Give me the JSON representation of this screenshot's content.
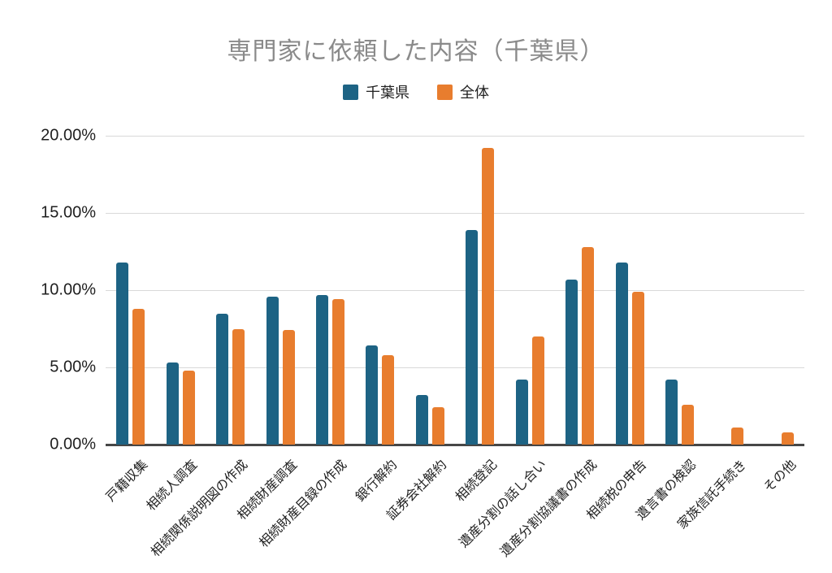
{
  "title": "専門家に依頼した内容（千葉県）",
  "legend": {
    "items": [
      {
        "label": "千葉県",
        "color": "#1d6384"
      },
      {
        "label": "全体",
        "color": "#e87d2e"
      }
    ]
  },
  "colors": {
    "series_chiba": "#1d6384",
    "series_overall": "#e87d2e",
    "title_text": "#8a8a8a",
    "tick_text": "#1f1f1f",
    "gridline": "#d9d9d9",
    "axis_line": "#474747",
    "background": "#ffffff"
  },
  "chart_data": {
    "type": "bar",
    "title": "専門家に依頼した内容（千葉県）",
    "categories": [
      "戸籍収集",
      "相続人調査",
      "相続関係説明図の作成",
      "相続財産調査",
      "相続財産目録の作成",
      "銀行解約",
      "証券会社解約",
      "相続登記",
      "遺産分割の話し合い",
      "遺産分割協議書の作成",
      "相続税の申告",
      "遺言書の検認",
      "家族信託手続き",
      "その他"
    ],
    "series": [
      {
        "name": "千葉県",
        "color": "#1d6384",
        "values": [
          11.8,
          5.3,
          8.5,
          9.6,
          9.7,
          6.4,
          3.2,
          13.9,
          4.2,
          10.7,
          11.8,
          4.2,
          0,
          0
        ]
      },
      {
        "name": "全体",
        "color": "#e87d2e",
        "values": [
          8.8,
          4.8,
          7.5,
          7.4,
          9.4,
          5.8,
          2.4,
          19.2,
          7.0,
          12.8,
          9.9,
          2.6,
          1.1,
          0.8
        ]
      }
    ],
    "xlabel": "",
    "ylabel": "",
    "ylim": [
      0,
      20
    ],
    "yticks": [
      {
        "value": 0,
        "label": "0.00%"
      },
      {
        "value": 5,
        "label": "5.00%"
      },
      {
        "value": 10,
        "label": "10.00%"
      },
      {
        "value": 15,
        "label": "15.00%"
      },
      {
        "value": 20,
        "label": "20.00%"
      }
    ],
    "grid": true,
    "legend_position": "top"
  }
}
